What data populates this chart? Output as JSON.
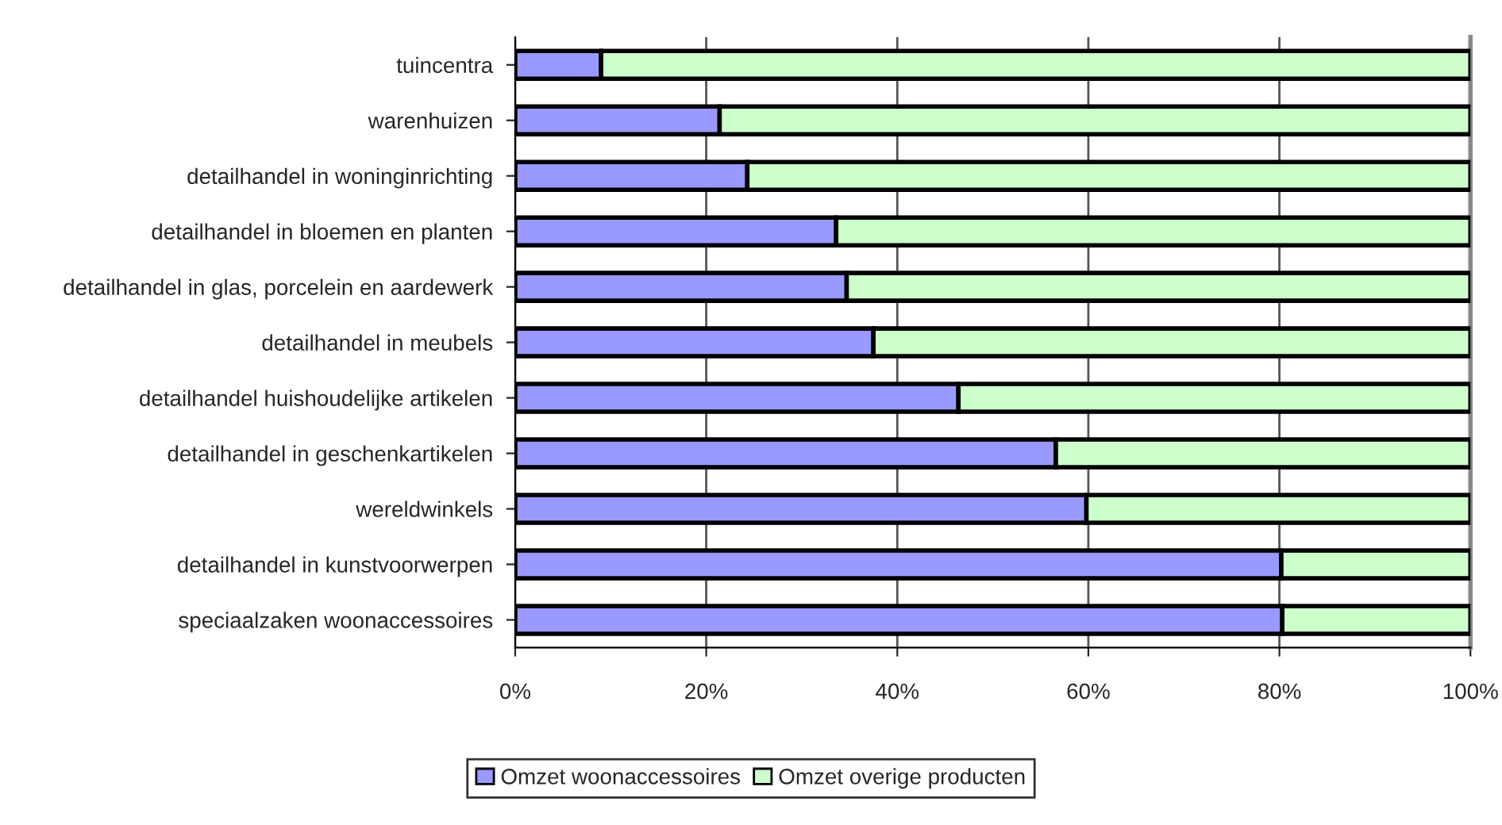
{
  "chart_data": {
    "type": "bar",
    "orientation": "horizontal",
    "stacked": true,
    "categories": [
      "tuincentra",
      "warenhuizen",
      "detailhandel in woninginrichting",
      "detailhandel in bloemen en planten",
      "detailhandel in glas, porcelein en aardewerk",
      "detailhandel in meubels",
      "detailhandel huishoudelijke artikelen",
      "detailhandel in geschenkartikelen",
      "wereldwinkels",
      "detailhandel in kunstvoorwerpen",
      "speciaalzaken woonaccessoires"
    ],
    "series": [
      {
        "name": "Omzet woonaccessoires",
        "color": "#9999ff",
        "values": [
          9,
          21.4,
          24.3,
          33.6,
          34.7,
          37.5,
          46.4,
          56.6,
          59.8,
          80.2,
          80.3
        ]
      },
      {
        "name": "Omzet overige producten",
        "color": "#ccffcc",
        "values": [
          91,
          78.6,
          75.7,
          66.4,
          65.3,
          62.5,
          53.6,
          43.4,
          40.2,
          19.8,
          19.7
        ]
      }
    ],
    "xlim": [
      0,
      100
    ],
    "xticks": [
      {
        "value": 0,
        "label": "0%"
      },
      {
        "value": 20,
        "label": "20%"
      },
      {
        "value": 40,
        "label": "40%"
      },
      {
        "value": 60,
        "label": "60%"
      },
      {
        "value": 80,
        "label": "80%"
      },
      {
        "value": 100,
        "label": "100%"
      }
    ],
    "grid": "x",
    "legend": "bottom"
  }
}
